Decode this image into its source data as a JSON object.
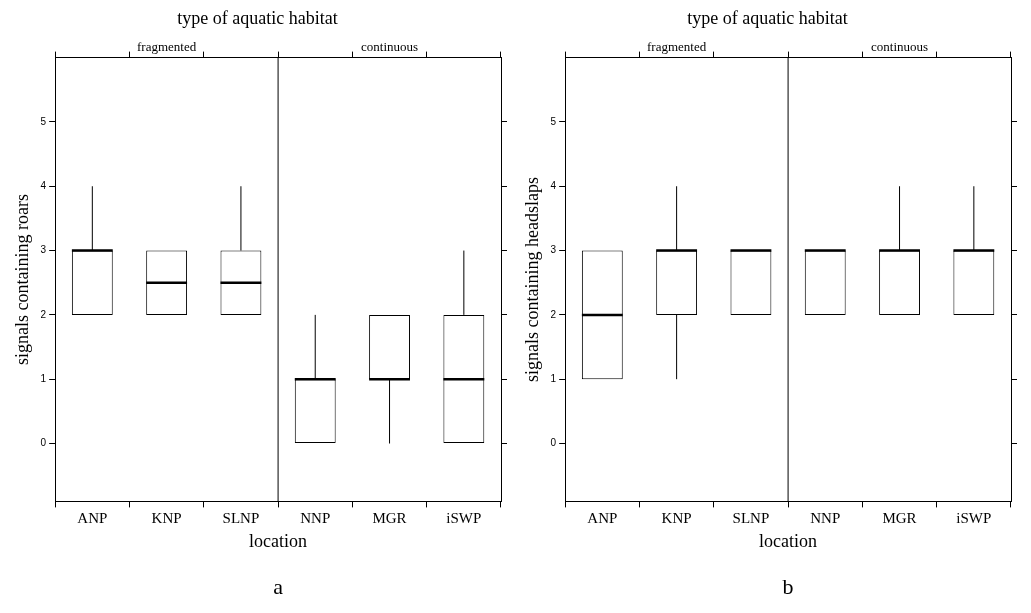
{
  "chart_data": [
    {
      "type": "box",
      "title": "type of aquatic habitat",
      "xlabel": "location",
      "ylabel": "signals containing roars",
      "categories": [
        "ANP",
        "KNP",
        "SLNP",
        "NNP",
        "MGR",
        "iSWP"
      ],
      "boxes": [
        {
          "low": 2,
          "q1": 2,
          "median": 3,
          "q3": 3,
          "high": 4
        },
        {
          "low": 2,
          "q1": 2,
          "median": 2.5,
          "q3": 3,
          "high": 3
        },
        {
          "low": 2,
          "q1": 2,
          "median": 2.5,
          "q3": 3,
          "high": 4
        },
        {
          "low": 0,
          "q1": 0,
          "median": 1,
          "q3": 1,
          "high": 2
        },
        {
          "low": 0,
          "q1": 1,
          "median": 1,
          "q3": 2,
          "high": 2
        },
        {
          "low": 0,
          "q1": 0,
          "median": 1,
          "q3": 2,
          "high": 3
        }
      ],
      "ylim": [
        -0.9,
        6
      ],
      "yticks": [
        0,
        1,
        2,
        3,
        4,
        5
      ],
      "grid": false,
      "annotations": [
        "fragmented",
        "continuous",
        "a"
      ]
    },
    {
      "type": "box",
      "title": "type of aquatic habitat",
      "xlabel": "location",
      "ylabel": "signals containing headslaps",
      "categories": [
        "ANP",
        "KNP",
        "SLNP",
        "NNP",
        "MGR",
        "iSWP"
      ],
      "boxes": [
        {
          "low": 1,
          "q1": 1,
          "median": 2,
          "q3": 3,
          "high": 3
        },
        {
          "low": 1,
          "q1": 2,
          "median": 3,
          "q3": 3,
          "high": 4
        },
        {
          "low": 2,
          "q1": 2,
          "median": 3,
          "q3": 3,
          "high": 3
        },
        {
          "low": 2,
          "q1": 2,
          "median": 3,
          "q3": 3,
          "high": 3
        },
        {
          "low": 2,
          "q1": 2,
          "median": 3,
          "q3": 3,
          "high": 4
        },
        {
          "low": 2,
          "q1": 2,
          "median": 3,
          "q3": 3,
          "high": 4
        }
      ],
      "ylim": [
        -0.9,
        6
      ],
      "yticks": [
        0,
        1,
        2,
        3,
        4,
        5
      ],
      "grid": false,
      "annotations": [
        "fragmented",
        "continuous",
        "b"
      ]
    }
  ]
}
